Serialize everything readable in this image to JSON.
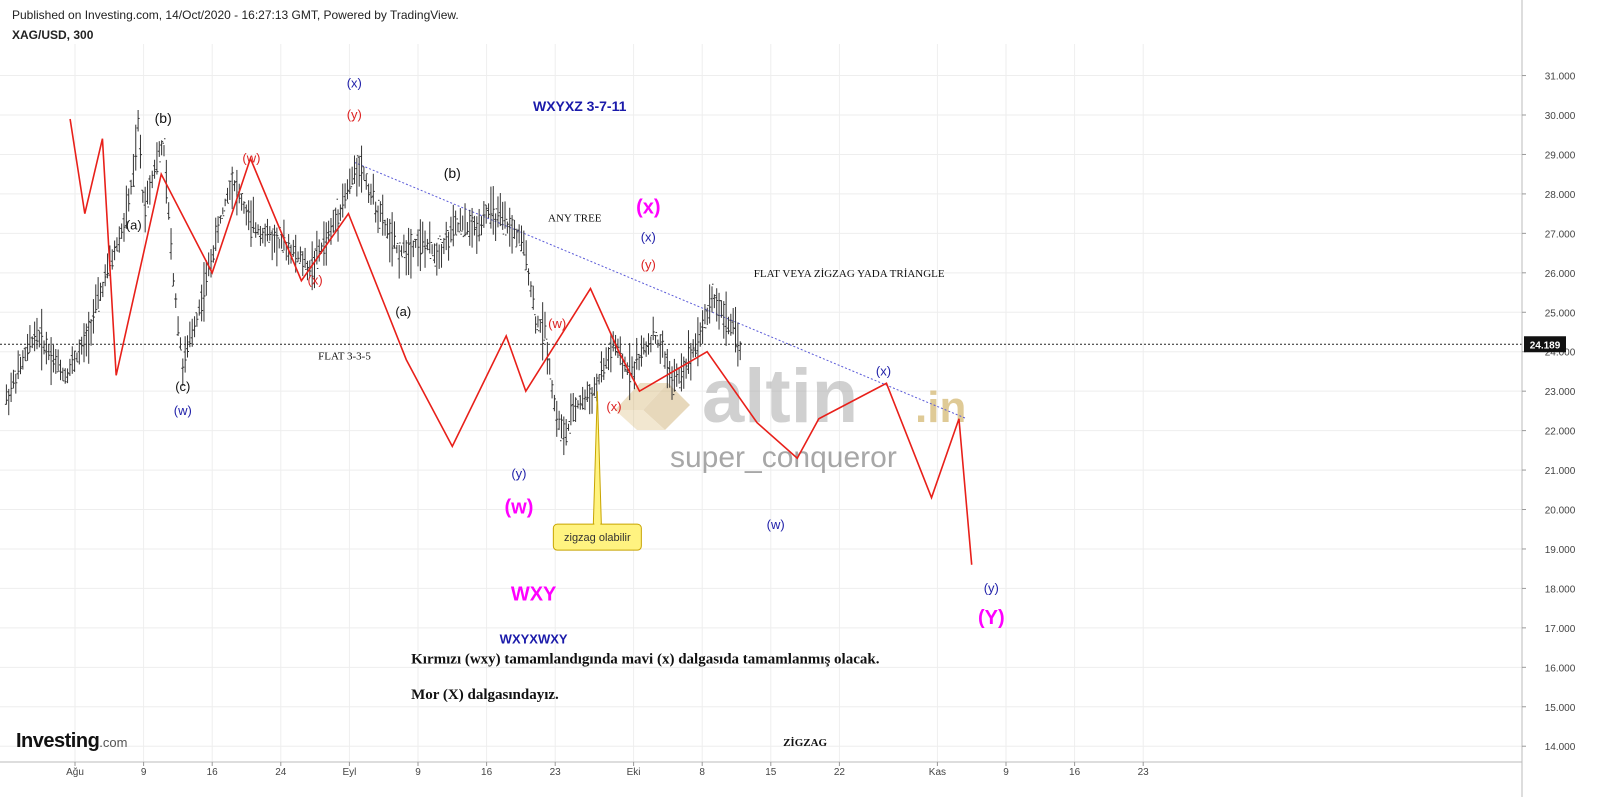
{
  "header": {
    "published": "Published on Investing.com, 14/Oct/2020 - 16:27:13 GMT, Powered by TradingView.",
    "symbol": "XAG/USD, 300"
  },
  "logo": {
    "main": "Investing",
    "suffix": ".com"
  },
  "watermark": {
    "brand": "altin",
    "brand_suffix": ".in",
    "author": "super_conqueror"
  },
  "chart_data": {
    "type": "candlestick",
    "ylim": [
      13.6,
      31.8
    ],
    "y_ticks": [
      14,
      15,
      16,
      17,
      18,
      19,
      20,
      21,
      22,
      23,
      24,
      25,
      26,
      27,
      28,
      29,
      30,
      31
    ],
    "y_tick_labels": [
      "14.000",
      "15.000",
      "16.000",
      "17.000",
      "18.000",
      "19.000",
      "20.000",
      "21.000",
      "22.000",
      "23.000",
      "24.000",
      "25.000",
      "26.000",
      "27.000",
      "28.000",
      "29.000",
      "30.000",
      "31.000"
    ],
    "x_ticks": [
      {
        "label": "Ağu",
        "idx": 0
      },
      {
        "label": "9",
        "idx": 7
      },
      {
        "label": "16",
        "idx": 14
      },
      {
        "label": "24",
        "idx": 21
      },
      {
        "label": "Eyl",
        "idx": 28
      },
      {
        "label": "9",
        "idx": 35
      },
      {
        "label": "16",
        "idx": 42
      },
      {
        "label": "23",
        "idx": 49
      },
      {
        "label": "Eki",
        "idx": 57
      },
      {
        "label": "8",
        "idx": 64
      },
      {
        "label": "15",
        "idx": 71
      },
      {
        "label": "22",
        "idx": 78
      },
      {
        "label": "Kas",
        "idx": 88
      },
      {
        "label": "9",
        "idx": 95
      },
      {
        "label": "16",
        "idx": 102
      },
      {
        "label": "23",
        "idx": 109
      }
    ],
    "current_price": 24.189,
    "current_price_label": "24.189",
    "price_path": [
      [
        -7,
        22.8
      ],
      [
        -4,
        24.5
      ],
      [
        -1,
        23.4
      ],
      [
        1,
        24.2
      ],
      [
        3,
        25.8
      ],
      [
        5,
        27.2
      ],
      [
        6,
        28.5
      ],
      [
        6.5,
        29.9
      ],
      [
        7,
        27.6
      ],
      [
        8,
        28.6
      ],
      [
        9,
        29.3
      ],
      [
        10,
        26.0
      ],
      [
        11,
        23.6
      ],
      [
        13,
        25.4
      ],
      [
        15,
        27.5
      ],
      [
        16,
        28.4
      ],
      [
        18,
        27.2
      ],
      [
        20,
        26.9
      ],
      [
        22,
        26.6
      ],
      [
        24,
        26.1
      ],
      [
        26,
        27.0
      ],
      [
        28,
        28.2
      ],
      [
        29,
        28.8
      ],
      [
        31,
        27.5
      ],
      [
        33,
        26.5
      ],
      [
        35,
        26.8
      ],
      [
        37,
        26.5
      ],
      [
        39,
        27.2
      ],
      [
        41,
        27.1
      ],
      [
        42,
        27.6
      ],
      [
        43,
        27.4
      ],
      [
        45,
        27.0
      ],
      [
        46,
        26.5
      ],
      [
        47,
        24.8
      ],
      [
        48,
        24.5
      ],
      [
        49,
        22.5
      ],
      [
        50,
        21.8
      ],
      [
        51,
        22.6
      ],
      [
        53,
        23.0
      ],
      [
        55,
        24.2
      ],
      [
        56,
        23.6
      ],
      [
        57,
        23.6
      ],
      [
        58,
        24.0
      ],
      [
        59,
        24.4
      ],
      [
        60,
        24.0
      ],
      [
        61,
        23.2
      ],
      [
        62,
        23.5
      ],
      [
        64,
        24.6
      ],
      [
        65,
        25.4
      ],
      [
        66,
        25.0
      ],
      [
        67,
        24.6
      ],
      [
        68,
        24.1
      ]
    ],
    "projection": [
      [
        -0.5,
        29.9
      ],
      [
        1,
        27.5
      ],
      [
        2.8,
        29.4
      ],
      [
        4.2,
        23.4
      ],
      [
        8.8,
        28.5
      ],
      [
        14,
        26.0
      ],
      [
        17.9,
        28.9
      ],
      [
        23.1,
        25.8
      ],
      [
        27.9,
        27.5
      ],
      [
        33.8,
        23.8
      ],
      [
        38.5,
        21.6
      ],
      [
        44,
        24.4
      ],
      [
        46,
        23.0
      ],
      [
        52.6,
        25.6
      ],
      [
        55.5,
        24.0
      ],
      [
        57.6,
        23.0
      ],
      [
        64.5,
        24.0
      ],
      [
        69.6,
        22.2
      ],
      [
        73.7,
        21.3
      ],
      [
        75.9,
        22.3
      ],
      [
        82.8,
        23.2
      ],
      [
        87.4,
        20.3
      ],
      [
        90.2,
        22.3
      ],
      [
        91.5,
        18.6
      ]
    ],
    "trendline": [
      [
        28.5,
        28.8
      ],
      [
        91,
        22.3
      ]
    ],
    "annotations": [
      {
        "text": "(b)",
        "idx": 9,
        "y": 29.8,
        "color": "#111111",
        "size": 14
      },
      {
        "text": "(a)",
        "idx": 6,
        "y": 27.1,
        "color": "#111111",
        "size": 13
      },
      {
        "text": "(c)",
        "idx": 11,
        "y": 23.0,
        "color": "#111111",
        "size": 13
      },
      {
        "text": "(w)",
        "idx": 11,
        "y": 22.4,
        "color": "#2222aa",
        "size": 13
      },
      {
        "text": "(w)",
        "idx": 18,
        "y": 28.8,
        "color": "#dd2222",
        "size": 13
      },
      {
        "text": "(x)",
        "idx": 24.5,
        "y": 25.7,
        "color": "#dd2222",
        "size": 13
      },
      {
        "text": "(x)",
        "idx": 28.5,
        "y": 30.7,
        "color": "#2222aa",
        "size": 13
      },
      {
        "text": "(y)",
        "idx": 28.5,
        "y": 29.9,
        "color": "#dd2222",
        "size": 13
      },
      {
        "text": "(a)",
        "idx": 33.5,
        "y": 24.9,
        "color": "#111111",
        "size": 13
      },
      {
        "text": "(b)",
        "idx": 38.5,
        "y": 28.4,
        "color": "#111111",
        "size": 14
      },
      {
        "text": "WXYXZ   3-7-11",
        "idx": 51.5,
        "y": 30.1,
        "color": "#1a1aaa",
        "size": 14,
        "bold": true
      },
      {
        "text": "ANY TREE",
        "idx": 51,
        "y": 27.3,
        "color": "#111111",
        "size": 11,
        "serif": true
      },
      {
        "text": "(x)",
        "idx": 58.5,
        "y": 27.5,
        "color": "#ff00ff",
        "size": 20
      },
      {
        "text": "(x)",
        "idx": 58.5,
        "y": 26.8,
        "color": "#2222aa",
        "size": 13
      },
      {
        "text": "(y)",
        "idx": 58.5,
        "y": 26.1,
        "color": "#dd2222",
        "size": 13
      },
      {
        "text": "FLAT VEYA ZİGZAG YADA TRİANGLE",
        "idx": 79,
        "y": 25.9,
        "color": "#111111",
        "size": 11,
        "serif": true
      },
      {
        "text": "(w)",
        "idx": 49.2,
        "y": 24.6,
        "color": "#dd2222",
        "size": 13
      },
      {
        "text": "FLAT  3-3-5",
        "idx": 27.5,
        "y": 23.8,
        "color": "#111111",
        "size": 11,
        "serif": true
      },
      {
        "text": "(x)",
        "idx": 55,
        "y": 22.5,
        "color": "#dd2222",
        "size": 13
      },
      {
        "text": "(y)",
        "idx": 45.3,
        "y": 20.8,
        "color": "#2222aa",
        "size": 13
      },
      {
        "text": "(w)",
        "idx": 45.3,
        "y": 19.9,
        "color": "#ff00ff",
        "size": 20
      },
      {
        "text": "(w)",
        "idx": 71.5,
        "y": 19.5,
        "color": "#2222aa",
        "size": 13
      },
      {
        "text": "(x)",
        "idx": 82.5,
        "y": 23.4,
        "color": "#2222aa",
        "size": 13
      },
      {
        "text": "(y)",
        "idx": 93.5,
        "y": 17.9,
        "color": "#2222aa",
        "size": 13
      },
      {
        "text": "(Y)",
        "idx": 93.5,
        "y": 17.1,
        "color": "#ff00ff",
        "size": 20
      },
      {
        "text": "WXY",
        "idx": 46.8,
        "y": 17.7,
        "color": "#ff00ff",
        "size": 20,
        "bold": true
      },
      {
        "text": "WXYXWXY",
        "idx": 46.8,
        "y": 16.6,
        "color": "#1a1aaa",
        "size": 13,
        "bold": true
      },
      {
        "text": "ZİGZAG",
        "idx": 74.5,
        "y": 14.0,
        "color": "#111111",
        "size": 11,
        "serif": true,
        "bold": true
      }
    ],
    "notes": [
      {
        "text": "Kırmızı (wxy) tamamlandıgında  mavi (x) dalgasıda tamamlanmış olacak.",
        "idx": 34.3,
        "y": 16.1
      },
      {
        "text": "Mor (X) dalgasındayız.",
        "idx": 34.3,
        "y": 15.2
      }
    ],
    "callout": {
      "text": "zigzag olabilir",
      "idx": 53.3,
      "y": 19.3,
      "anchor_idx": 53.3,
      "anchor_y": 23.0
    }
  }
}
